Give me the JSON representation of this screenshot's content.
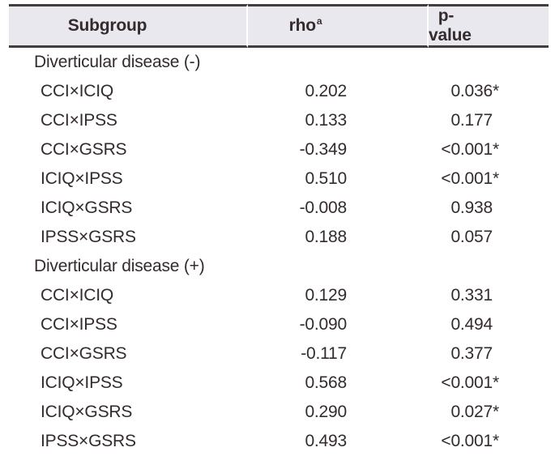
{
  "table": {
    "style": {
      "header_bg": "#e9e8ee",
      "text_color": "#332b2d",
      "rule_color": "#433d3e"
    },
    "significance_marker": "*",
    "columns": [
      {
        "label": "Subgroup"
      },
      {
        "label": "rho",
        "superscript": "a"
      },
      {
        "label": "p-value"
      }
    ],
    "groups": [
      {
        "label": "Diverticular disease (-)",
        "rows": [
          {
            "subgroup": "CCI×ICIQ",
            "rho": "0.202",
            "p": "0.036",
            "significant": true
          },
          {
            "subgroup": "CCI×IPSS",
            "rho": "0.133",
            "p": "0.177",
            "significant": false
          },
          {
            "subgroup": "CCI×GSRS",
            "rho": "-0.349",
            "p": "<0.001",
            "significant": true
          },
          {
            "subgroup": "ICIQ×IPSS",
            "rho": "0.510",
            "p": "<0.001",
            "significant": true
          },
          {
            "subgroup": "ICIQ×GSRS",
            "rho": "-0.008",
            "p": "0.938",
            "significant": false
          },
          {
            "subgroup": "IPSS×GSRS",
            "rho": "0.188",
            "p": "0.057",
            "significant": false
          }
        ]
      },
      {
        "label": "Diverticular disease (+)",
        "rows": [
          {
            "subgroup": "CCI×ICIQ",
            "rho": "0.129",
            "p": "0.331",
            "significant": false
          },
          {
            "subgroup": "CCI×IPSS",
            "rho": "-0.090",
            "p": "0.494",
            "significant": false
          },
          {
            "subgroup": "CCI×GSRS",
            "rho": "-0.117",
            "p": "0.377",
            "significant": false
          },
          {
            "subgroup": "ICIQ×IPSS",
            "rho": "0.568",
            "p": "<0.001",
            "significant": true
          },
          {
            "subgroup": "ICIQ×GSRS",
            "rho": "0.290",
            "p": "0.027",
            "significant": true
          },
          {
            "subgroup": "IPSS×GSRS",
            "rho": "0.493",
            "p": "<0.001",
            "significant": true
          }
        ]
      }
    ]
  }
}
